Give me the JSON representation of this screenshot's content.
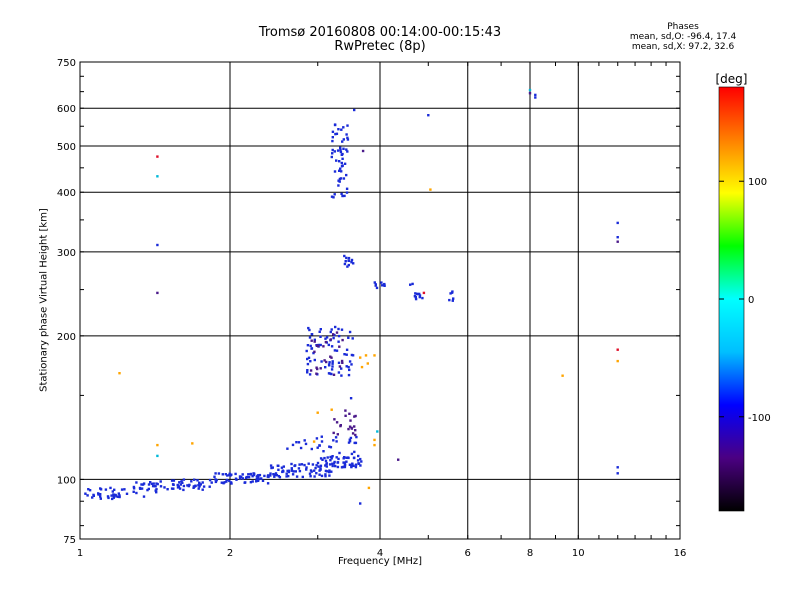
{
  "chart_data": {
    "type": "scatter",
    "title": [
      "Tromsø 20160808 00:14:00-00:15:43",
      "RwPretec (8p)"
    ],
    "xlabel": "Frequency [MHz]",
    "ylabel": "Stationary phase Virtual Height [km]",
    "x_scale": "log",
    "y_scale": "log",
    "xlim": [
      1,
      16
    ],
    "ylim": [
      75,
      750
    ],
    "x_ticks": [
      1,
      2,
      4,
      6,
      8,
      10,
      16
    ],
    "y_ticks": [
      75,
      100,
      200,
      300,
      400,
      500,
      600,
      750
    ],
    "grid": true,
    "phase_info": [
      "Phases",
      "mean, sd,O: -96.4, 17.4",
      "mean, sd,X:  97.2, 32.6"
    ],
    "colorbar": {
      "label": "[deg]",
      "range": [
        -180,
        180
      ],
      "ticks": [
        100,
        0,
        -100
      ],
      "colors": [
        "#000000",
        "#4b0082",
        "#0000ff",
        "#00bfff",
        "#00ffff",
        "#00ff00",
        "#ffff00",
        "#ff8000",
        "#ff0000"
      ]
    },
    "point_colors": {
      "O": "#1a2bd8",
      "purple": "#4b1a8a",
      "cyan": "#00b8d8",
      "orange": "#ffa500",
      "red": "#e0102a"
    },
    "clusters": [
      {
        "x_range": [
          1.0,
          1.25
        ],
        "y_range": [
          91,
          96
        ],
        "count": 35,
        "color": "O"
      },
      {
        "x_range": [
          1.28,
          1.5
        ],
        "y_range": [
          92,
          99
        ],
        "count": 30,
        "color": "O"
      },
      {
        "x_range": [
          1.5,
          1.85
        ],
        "y_range": [
          95,
          100
        ],
        "count": 40,
        "color": "O"
      },
      {
        "x_range": [
          1.85,
          2.4
        ],
        "y_range": [
          98,
          103
        ],
        "count": 60,
        "color": "O"
      },
      {
        "x_range": [
          2.4,
          3.2
        ],
        "y_range": [
          101,
          108
        ],
        "count": 70,
        "color": "O"
      },
      {
        "x_range": [
          3.0,
          3.7
        ],
        "y_range": [
          106,
          112
        ],
        "count": 55,
        "color": "O"
      },
      {
        "x_range": [
          2.6,
          3.6
        ],
        "y_range": [
          113,
          123
        ],
        "count": 30,
        "color": "O"
      },
      {
        "x_range": [
          3.2,
          3.6
        ],
        "y_range": [
          123,
          140
        ],
        "count": 20,
        "color": "purple"
      },
      {
        "x_range": [
          2.85,
          3.55
        ],
        "y_range": [
          165,
          212
        ],
        "count": 75,
        "color": "O"
      },
      {
        "x_range": [
          2.9,
          3.4
        ],
        "y_range": [
          165,
          205
        ],
        "count": 25,
        "color": "purple"
      },
      {
        "x_range": [
          3.2,
          3.45
        ],
        "y_range": [
          385,
          560
        ],
        "count": 55,
        "color": "O"
      },
      {
        "x_range": [
          3.35,
          3.55
        ],
        "y_range": [
          278,
          295
        ],
        "count": 12,
        "color": "O"
      },
      {
        "x_range": [
          3.9,
          4.1
        ],
        "y_range": [
          252,
          260
        ],
        "count": 10,
        "color": "O"
      },
      {
        "x_range": [
          4.7,
          4.95
        ],
        "y_range": [
          238,
          246
        ],
        "count": 10,
        "color": "O"
      },
      {
        "x_range": [
          5.5,
          5.65
        ],
        "y_range": [
          236,
          248
        ],
        "count": 6,
        "color": "O"
      }
    ],
    "points": [
      [
        1.43,
        475,
        "red"
      ],
      [
        1.43,
        432,
        "cyan"
      ],
      [
        1.43,
        310,
        "O"
      ],
      [
        1.43,
        246,
        "purple"
      ],
      [
        1.43,
        118,
        "orange"
      ],
      [
        1.43,
        112,
        "cyan"
      ],
      [
        1.2,
        167,
        "orange"
      ],
      [
        1.68,
        119,
        "orange"
      ],
      [
        3.55,
        595,
        "O"
      ],
      [
        3.7,
        488,
        "purple"
      ],
      [
        5.0,
        580,
        "O"
      ],
      [
        5.05,
        405,
        "orange"
      ],
      [
        8.0,
        655,
        "cyan"
      ],
      [
        8.0,
        645,
        "purple"
      ],
      [
        8.2,
        640,
        "O"
      ],
      [
        8.2,
        632,
        "O"
      ],
      [
        12.0,
        345,
        "O"
      ],
      [
        12.0,
        322,
        "O"
      ],
      [
        12.0,
        315,
        "purple"
      ],
      [
        12.0,
        187,
        "red"
      ],
      [
        12.0,
        177,
        "orange"
      ],
      [
        12.0,
        106,
        "O"
      ],
      [
        12.0,
        103,
        "O"
      ],
      [
        9.3,
        165,
        "orange"
      ],
      [
        3.75,
        182,
        "orange"
      ],
      [
        3.65,
        180,
        "orange"
      ],
      [
        3.78,
        175,
        "orange"
      ],
      [
        3.68,
        172,
        "orange"
      ],
      [
        3.9,
        182,
        "orange"
      ],
      [
        3.95,
        126,
        "cyan"
      ],
      [
        3.9,
        121,
        "orange"
      ],
      [
        3.9,
        118,
        "orange"
      ],
      [
        3.8,
        96,
        "orange"
      ],
      [
        3.65,
        89,
        "O"
      ],
      [
        4.35,
        110,
        "purple"
      ],
      [
        4.6,
        256,
        "O"
      ],
      [
        4.65,
        257,
        "O"
      ],
      [
        4.9,
        246,
        "red"
      ],
      [
        3.2,
        140,
        "orange"
      ],
      [
        3.0,
        138,
        "orange"
      ],
      [
        2.95,
        120,
        "orange"
      ],
      [
        3.5,
        148,
        "O"
      ]
    ]
  }
}
